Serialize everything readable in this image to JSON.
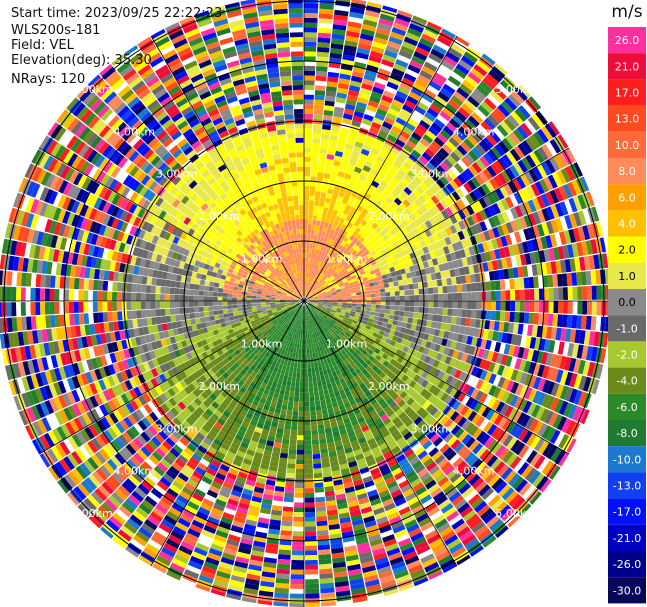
{
  "header": {
    "start_time": "Start time: 2023/09/25 22:22:23",
    "instrument": "WLS200s-181",
    "field": "Field: VEL",
    "elevation": "Elevation(deg): 35.30",
    "nrays": "NRays: 120"
  },
  "colorbar": {
    "unit": "m/s",
    "ticks": [
      "26.0",
      "21.0",
      "17.0",
      "13.0",
      "10.0",
      "8.0",
      "6.0",
      "4.0",
      "2.0",
      "1.0",
      "0.0",
      "-1.0",
      "-2.0",
      "-4.0",
      "-6.0",
      "-8.0",
      "-10.0",
      "-13.0",
      "-17.0",
      "-21.0",
      "-26.0",
      "-30.0"
    ],
    "colors": [
      "#ff2fa0",
      "#ee0d3a",
      "#ff1e1e",
      "#ff4a1e",
      "#ff6a3a",
      "#ff8a5a",
      "#ffa000",
      "#ffc000",
      "#ffff00",
      "#e8e84a",
      "#8a8a8a",
      "#6a6a6a",
      "#a8c830",
      "#6a8a1a",
      "#2a8a2a",
      "#207a30",
      "#1a7ad0",
      "#1040f0",
      "#0010ff",
      "#0000c0",
      "#00008a",
      "#06065a"
    ]
  },
  "chart_data": {
    "type": "ppi",
    "field": "VEL",
    "units": "m/s",
    "nrays": 120,
    "range_rings_km": [
      1.0,
      2.0,
      3.0,
      4.0,
      5.0
    ],
    "range_labels": [
      "1.00km",
      "2.00km",
      "3.00km",
      "4.00km",
      "5.00km"
    ],
    "azimuth_lines_deg": [
      0,
      30,
      60,
      90,
      120,
      150,
      180,
      210,
      240,
      270,
      300,
      330
    ],
    "vmin": -30.0,
    "vmax": 30.0,
    "inner_pattern": "positive (yellow/orange) velocities in the northern half, negative (green) in the southern half, noisy random values beyond ~3 km"
  }
}
